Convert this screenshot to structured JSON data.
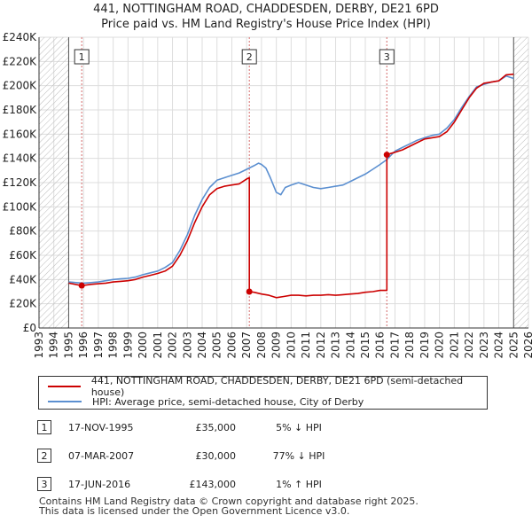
{
  "header": {
    "title": "441, NOTTINGHAM ROAD, CHADDESDEN, DERBY, DE21 6PD",
    "subtitle": "Price paid vs. HM Land Registry's House Price Index (HPI)"
  },
  "chart_data": {
    "type": "line",
    "title": "441, NOTTINGHAM ROAD, CHADDESDEN, DERBY, DE21 6PD",
    "subtitle": "Price paid vs. HM Land Registry's House Price Index (HPI)",
    "xlabel": "",
    "ylabel": "",
    "xlim": [
      1993,
      2026
    ],
    "ylim": [
      0,
      240000
    ],
    "x_ticks": [
      "1993",
      "1994",
      "1995",
      "1996",
      "1997",
      "1998",
      "1999",
      "2000",
      "2001",
      "2002",
      "2003",
      "2004",
      "2005",
      "2006",
      "2007",
      "2008",
      "2009",
      "2010",
      "2011",
      "2012",
      "2013",
      "2014",
      "2015",
      "2016",
      "2017",
      "2018",
      "2019",
      "2020",
      "2021",
      "2022",
      "2023",
      "2024",
      "2025",
      "2026"
    ],
    "y_ticks": [
      {
        "value": 0,
        "label": "£0"
      },
      {
        "value": 20000,
        "label": "£20K"
      },
      {
        "value": 40000,
        "label": "£40K"
      },
      {
        "value": 60000,
        "label": "£60K"
      },
      {
        "value": 80000,
        "label": "£80K"
      },
      {
        "value": 100000,
        "label": "£100K"
      },
      {
        "value": 120000,
        "label": "£120K"
      },
      {
        "value": 140000,
        "label": "£140K"
      },
      {
        "value": 160000,
        "label": "£160K"
      },
      {
        "value": 180000,
        "label": "£180K"
      },
      {
        "value": 200000,
        "label": "£200K"
      },
      {
        "value": 220000,
        "label": "£220K"
      },
      {
        "value": 240000,
        "label": "£240K"
      }
    ],
    "grid": true,
    "hatched_ranges": [
      [
        1993,
        1995.0
      ],
      [
        2025.0,
        2026
      ]
    ],
    "colors": {
      "price": "#cc0000",
      "hpi": "#5b8fd0",
      "marker_line": "#d46a6a",
      "hatch": "#bbbbbb"
    },
    "series": [
      {
        "name": "441, NOTTINGHAM ROAD, CHADDESDEN, DERBY, DE21 6PD (semi-detached house)",
        "color": "#cc0000",
        "x": [
          1995.0,
          1995.88,
          1996.5,
          1997.0,
          1997.5,
          1998.0,
          1998.5,
          1999.0,
          1999.5,
          2000.0,
          2000.5,
          2001.0,
          2001.5,
          2002.0,
          2002.5,
          2003.0,
          2003.5,
          2004.0,
          2004.5,
          2005.0,
          2005.5,
          2006.0,
          2006.5,
          2007.0,
          2007.18,
          2007.18,
          2007.5,
          2008.0,
          2008.5,
          2009.0,
          2009.5,
          2010.0,
          2010.5,
          2011.0,
          2011.5,
          2012.0,
          2012.5,
          2013.0,
          2013.5,
          2014.0,
          2014.5,
          2015.0,
          2015.5,
          2016.0,
          2016.45,
          2016.45,
          2016.7,
          2017.0,
          2017.5,
          2018.0,
          2018.5,
          2019.0,
          2019.5,
          2020.0,
          2020.5,
          2021.0,
          2021.5,
          2022.0,
          2022.5,
          2023.0,
          2023.5,
          2024.0,
          2024.5,
          2025.0
        ],
        "values": [
          37000,
          35000,
          36000,
          36500,
          37000,
          38000,
          38500,
          39000,
          40000,
          42000,
          43500,
          45000,
          47000,
          51000,
          60000,
          72000,
          87000,
          100000,
          110000,
          115000,
          117000,
          118000,
          119000,
          123000,
          124000,
          30000,
          29500,
          28000,
          27000,
          25000,
          26000,
          27000,
          27000,
          26500,
          27000,
          27000,
          27500,
          27000,
          27500,
          28000,
          28500,
          29500,
          30000,
          31000,
          31000,
          143000,
          144000,
          145000,
          147000,
          150000,
          153000,
          156000,
          157000,
          158000,
          162000,
          170000,
          180000,
          190000,
          198000,
          202000,
          203000,
          204000,
          209000,
          209500
        ]
      },
      {
        "name": "HPI: Average price, semi-detached house, City of Derby",
        "color": "#5b8fd0",
        "x": [
          1995.0,
          1995.5,
          1996.0,
          1996.5,
          1997.0,
          1997.5,
          1998.0,
          1998.5,
          1999.0,
          1999.5,
          2000.0,
          2000.5,
          2001.0,
          2001.5,
          2002.0,
          2002.5,
          2003.0,
          2003.5,
          2004.0,
          2004.5,
          2005.0,
          2005.5,
          2006.0,
          2006.5,
          2007.0,
          2007.5,
          2007.8,
          2008.0,
          2008.3,
          2008.6,
          2009.0,
          2009.3,
          2009.6,
          2010.0,
          2010.5,
          2011.0,
          2011.5,
          2012.0,
          2012.5,
          2013.0,
          2013.5,
          2014.0,
          2014.5,
          2015.0,
          2015.5,
          2016.0,
          2016.45,
          2017.0,
          2017.5,
          2018.0,
          2018.5,
          2019.0,
          2019.5,
          2020.0,
          2020.5,
          2021.0,
          2021.5,
          2022.0,
          2022.5,
          2023.0,
          2023.5,
          2024.0,
          2024.5,
          2025.0
        ],
        "values": [
          38000,
          37500,
          37000,
          37500,
          38000,
          39000,
          40000,
          40500,
          41000,
          42000,
          44000,
          45500,
          47000,
          50000,
          54000,
          64000,
          77000,
          93000,
          106000,
          116000,
          122000,
          124000,
          126000,
          128000,
          131000,
          134000,
          136000,
          135000,
          132000,
          124000,
          112000,
          110000,
          116000,
          118000,
          120000,
          118000,
          116000,
          115000,
          116000,
          117000,
          118000,
          121000,
          124000,
          127000,
          131000,
          135000,
          139000,
          146000,
          149000,
          152000,
          155000,
          157000,
          159000,
          160000,
          165000,
          172000,
          182000,
          191000,
          199000,
          201000,
          203000,
          204000,
          208000,
          206000
        ]
      }
    ],
    "markers": [
      {
        "label": "1",
        "x": 1995.88,
        "y": 35000
      },
      {
        "label": "2",
        "x": 2007.18,
        "y": 30000
      },
      {
        "label": "3",
        "x": 2016.45,
        "y": 143000
      }
    ]
  },
  "legend": {
    "items": [
      {
        "label": "441, NOTTINGHAM ROAD, CHADDESDEN, DERBY, DE21 6PD (semi-detached house)",
        "color": "#cc0000"
      },
      {
        "label": "HPI: Average price, semi-detached house, City of Derby",
        "color": "#5b8fd0"
      }
    ]
  },
  "transactions": [
    {
      "num": "1",
      "date": "17-NOV-1995",
      "price": "£35,000",
      "hpi": "5% ↓ HPI"
    },
    {
      "num": "2",
      "date": "07-MAR-2007",
      "price": "£30,000",
      "hpi": "77% ↓ HPI"
    },
    {
      "num": "3",
      "date": "17-JUN-2016",
      "price": "£143,000",
      "hpi": "1% ↑ HPI"
    }
  ],
  "footer": {
    "line1": "Contains HM Land Registry data © Crown copyright and database right 2025.",
    "line2": "This data is licensed under the Open Government Licence v3.0."
  }
}
